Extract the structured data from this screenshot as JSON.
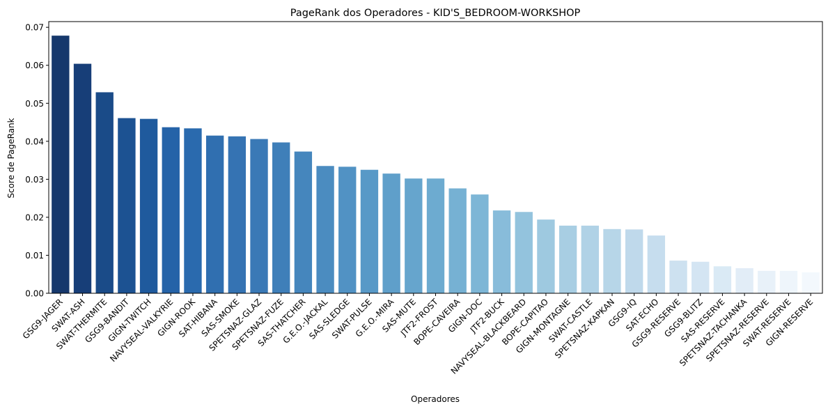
{
  "chart_data": {
    "type": "bar",
    "title": "PageRank dos Operadores - KID'S_BEDROOM-WORKSHOP",
    "xlabel": "Operadores",
    "ylabel": "Score de PageRank",
    "ylim": [
      0,
      0.0715
    ],
    "yticks": [
      "0.00",
      "0.01",
      "0.02",
      "0.03",
      "0.04",
      "0.05",
      "0.06",
      "0.07"
    ],
    "grid": false,
    "palette": "Blues (dark to light)",
    "categories": [
      "GSG9-JAGER",
      "SWAT-ASH",
      "SWAT-THERMITE",
      "GSG9-BANDIT",
      "GIGN-TWITCH",
      "NAVYSEAL-VALKYRIE",
      "GIGN-ROOK",
      "SAT-HIBANA",
      "SAS-SMOKE",
      "SPETSNAZ-GLAZ",
      "SPETSNAZ-FUZE",
      "SAS-THATCHER",
      "G.E.O.-JACKAL",
      "SAS-SLEDGE",
      "SWAT-PULSE",
      "G.E.O.-MIRA",
      "SAS-MUTE",
      "JTF2-FROST",
      "BOPE-CAVEIRA",
      "GIGN-DOC",
      "JTF2-BUCK",
      "NAVYSEAL-BLACKBEARD",
      "BOPE-CAPITAO",
      "GIGN-MONTAGNE",
      "SWAT-CASTLE",
      "SPETSNAZ-KAPKAN",
      "GSG9-IQ",
      "SAT-ECHO",
      "GSG9-RESERVE",
      "GSG9-BLITZ",
      "SAS-RESERVE",
      "SPETSNAZ-TACHANKA",
      "SPETSNAZ-RESERVE",
      "SWAT-RESERVE",
      "GIGN-RESERVE"
    ],
    "values": [
      0.0678,
      0.0604,
      0.0529,
      0.0461,
      0.0459,
      0.0437,
      0.0434,
      0.0415,
      0.0413,
      0.0406,
      0.0397,
      0.0373,
      0.0335,
      0.0333,
      0.0325,
      0.0315,
      0.0302,
      0.0302,
      0.0276,
      0.026,
      0.0218,
      0.0214,
      0.0194,
      0.0178,
      0.0178,
      0.0169,
      0.0168,
      0.0152,
      0.0086,
      0.0083,
      0.0071,
      0.0066,
      0.0059,
      0.0059,
      0.0055
    ],
    "colors": [
      "#16386c",
      "#173e78",
      "#1a4b88",
      "#1c5292",
      "#1f5a9d",
      "#2563a8",
      "#2a6aae",
      "#306fb0",
      "#3573b3",
      "#3a79b6",
      "#3f7fb9",
      "#4586bd",
      "#4b8cc0",
      "#5192c4",
      "#5899c7",
      "#5f9fca",
      "#66a5cd",
      "#6dabd0",
      "#76b1d3",
      "#7db6d6",
      "#88bcda",
      "#93c3dd",
      "#9ec9e0",
      "#a8cee3",
      "#b0d2e6",
      "#b7d6e8",
      "#bfd9eb",
      "#c6ddee",
      "#cde1f0",
      "#d4e5f3",
      "#daeaf5",
      "#e2edf7",
      "#e8f1f9",
      "#eef5fb",
      "#f3f8fd"
    ]
  }
}
